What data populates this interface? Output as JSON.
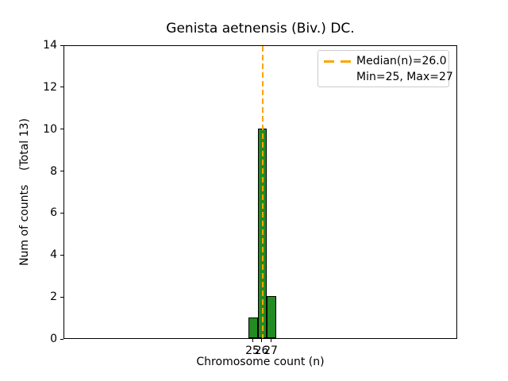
{
  "chart_data": {
    "type": "bar",
    "title": "Genista aetnensis (Biv.) DC.",
    "xlabel": "Chromosome count (n)",
    "ylabel": "Num of counts    (Total 13)",
    "categories": [
      25,
      26,
      27
    ],
    "values": [
      1,
      10,
      2
    ],
    "total_counts": 13,
    "median": 26.0,
    "min": 25,
    "max": 27,
    "xticks": [
      "25",
      "26",
      "27"
    ],
    "yticks": [
      0,
      2,
      4,
      6,
      8,
      10,
      12,
      14
    ],
    "ylim": [
      0,
      14
    ],
    "grid": false,
    "legend_position": "upper right",
    "legend_entries": [
      "Median(n)=26.0",
      "Min=25, Max=27"
    ],
    "colors": {
      "bar_fill": "#228B22",
      "bar_edge": "#000000",
      "median_line": "#FFA500",
      "spine": "#000000",
      "legend_border": "#CCCCCC",
      "background": "#FFFFFF"
    }
  }
}
